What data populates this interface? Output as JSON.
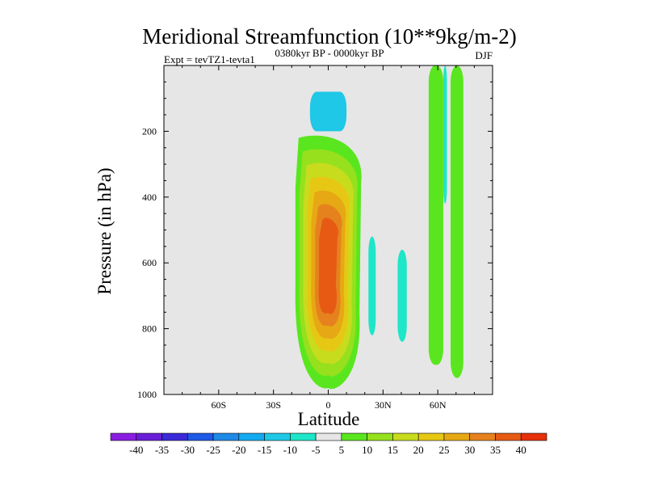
{
  "chart_data": {
    "type": "contour",
    "title": "Meridional Streamfunction (10**9kg/m-2)",
    "subtitle_left": "Expt = tevTZ1-tevta1",
    "subtitle_center": "0380kyr BP - 0000kyr BP",
    "subtitle_right": "DJF",
    "xlabel": "Latitude",
    "ylabel": "Pressure (in hPa)",
    "xlim": [
      -90,
      90
    ],
    "ylim": [
      1000,
      0
    ],
    "x_ticks": [
      {
        "value": -60,
        "label": "60S"
      },
      {
        "value": -30,
        "label": "30S"
      },
      {
        "value": 0,
        "label": "0"
      },
      {
        "value": 30,
        "label": "30N"
      },
      {
        "value": 60,
        "label": "60N"
      }
    ],
    "y_ticks": [
      {
        "value": 200,
        "label": "200"
      },
      {
        "value": 400,
        "label": "400"
      },
      {
        "value": 600,
        "label": "600"
      },
      {
        "value": 800,
        "label": "800"
      },
      {
        "value": 1000,
        "label": "1000"
      }
    ],
    "background_color": "#e6e6e6",
    "colorbar": {
      "levels": [
        -40,
        -35,
        -30,
        -25,
        -20,
        -15,
        -10,
        -5,
        5,
        10,
        15,
        20,
        25,
        30,
        35,
        40
      ],
      "labels": [
        "-40",
        "-35",
        "-30",
        "-25",
        "-20",
        "-15",
        "-10",
        "-5",
        "5",
        "10",
        "15",
        "20",
        "25",
        "30",
        "35",
        "40"
      ],
      "colors": [
        "#8a1ee0",
        "#6a1ed8",
        "#3a2ad8",
        "#1e5ae6",
        "#1e8ae6",
        "#14aaf0",
        "#1ec8e6",
        "#1ee6c8",
        "#e6e6e6",
        "#5ae61e",
        "#96e01e",
        "#c8dc1e",
        "#e6c814",
        "#e6a814",
        "#e6821e",
        "#e65a14",
        "#e6300a"
      ]
    },
    "features": [
      {
        "name": "main-positive-cell",
        "center_lat": 0,
        "center_p": 600,
        "lat_half_width": 18,
        "p_top": 220,
        "p_bottom": 980,
        "peak_value": 35
      },
      {
        "name": "upper-negative-cell",
        "lat_range": [
          -10,
          10
        ],
        "p_range": [
          80,
          200
        ],
        "value": -10
      },
      {
        "name": "negative-strip-1",
        "lat_range": [
          22,
          26
        ],
        "p_range": [
          520,
          820
        ],
        "value": -5
      },
      {
        "name": "negative-strip-2",
        "lat_range": [
          38,
          43
        ],
        "p_range": [
          560,
          840
        ],
        "value": -5
      },
      {
        "name": "positive-strip-1",
        "lat_range": [
          55,
          63
        ],
        "p_range": [
          0,
          910
        ],
        "value": 5
      },
      {
        "name": "positive-strip-2",
        "lat_range": [
          67,
          74
        ],
        "p_range": [
          0,
          950
        ],
        "value": 5
      },
      {
        "name": "negative-sliver",
        "lat_range": [
          63,
          65
        ],
        "p_range": [
          0,
          420
        ],
        "value": -5
      }
    ]
  }
}
